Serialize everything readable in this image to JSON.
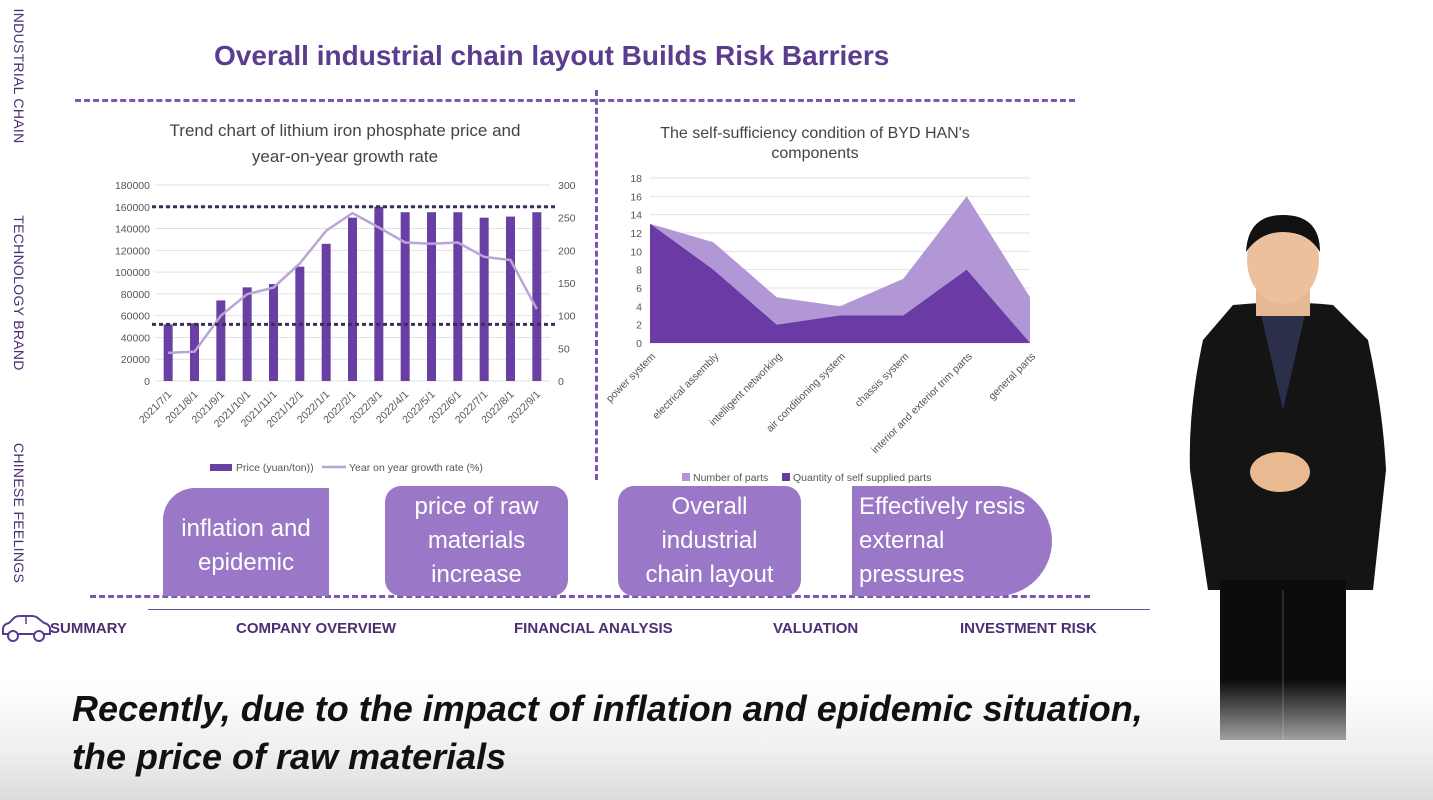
{
  "side_labels": [
    "INDUSTRIAL CHAIN",
    "TECHNOLOGY BRAND",
    "CHINESE FEELINGS"
  ],
  "title": "Overall industrial chain layout Builds Risk Barriers",
  "boxes": [
    {
      "text": "inflation and epidemic"
    },
    {
      "text": "price of raw materials increase"
    },
    {
      "text": "Overall industrial chain layout"
    },
    {
      "text": "Effectively resis external pressures"
    }
  ],
  "nav": {
    "items": [
      "SUMMARY",
      "COMPANY OVERVIEW",
      "FINANCIAL ANALYSIS",
      "VALUATION",
      "INVESTMENT RISK"
    ]
  },
  "subtitle": {
    "line1": "Recently, due to the impact of inflation and epidemic situation,",
    "line2": "the price of raw materials"
  },
  "colors": {
    "accent": "#5a3d8f",
    "bar": "#6a3fa3",
    "line": "#b9a6d6",
    "dark_area": "#6a3aa5",
    "light_area": "#b197d6"
  },
  "icons": {
    "car": "car-icon"
  },
  "chart_data": [
    {
      "type": "bar",
      "title_line1": "Trend chart of lithium iron phosphate price and",
      "title_line2": "year-on-year growth rate",
      "categories": [
        "2021/7/1",
        "2021/8/1",
        "2021/9/1",
        "2021/10/1",
        "2021/11/1",
        "2021/12/1",
        "2022/1/1",
        "2022/2/1",
        "2022/3/1",
        "2022/4/1",
        "2022/5/1",
        "2022/6/1",
        "2022/7/1",
        "2022/8/1",
        "2022/9/1"
      ],
      "series": [
        {
          "name": "Price (yuan/ton))",
          "type": "bar",
          "axis": "left",
          "values": [
            52000,
            53000,
            74000,
            86000,
            89000,
            105000,
            126000,
            150000,
            160000,
            155000,
            155000,
            155000,
            150000,
            151000,
            155000
          ]
        },
        {
          "name": "Year on year growth rate (%)",
          "type": "line",
          "axis": "right",
          "values": [
            43,
            45,
            100,
            133,
            143,
            180,
            230,
            257,
            235,
            212,
            210,
            212,
            190,
            185,
            110
          ]
        }
      ],
      "yticks_left": [
        "0",
        "20000",
        "40000",
        "60000",
        "80000",
        "100000",
        "120000",
        "140000",
        "160000",
        "180000"
      ],
      "yticks_right": [
        "0",
        "50",
        "100",
        "150",
        "200",
        "250",
        "300"
      ],
      "ylim_left": [
        0,
        180000
      ],
      "ylim_right": [
        0,
        300
      ],
      "reference_lines": [
        160000,
        52000
      ],
      "legend": "bottom"
    },
    {
      "type": "area",
      "title_line1": "The self-sufficiency condition of BYD HAN's",
      "title_line2": "components",
      "categories": [
        "power system",
        "electrical assembly",
        "intelligent networking",
        "air conditioning system",
        "chassis system",
        "interior and exterior trim parts",
        "general parts"
      ],
      "series": [
        {
          "name": "Number of parts",
          "values": [
            13,
            11,
            5,
            4,
            7,
            16,
            5
          ]
        },
        {
          "name": "Quantity of self supplied parts",
          "values": [
            13,
            8,
            2,
            3,
            3,
            8,
            0
          ]
        }
      ],
      "yticks": [
        "0",
        "2",
        "4",
        "6",
        "8",
        "10",
        "12",
        "14",
        "16",
        "18"
      ],
      "ylim": [
        0,
        18
      ],
      "legend": "bottom"
    }
  ]
}
